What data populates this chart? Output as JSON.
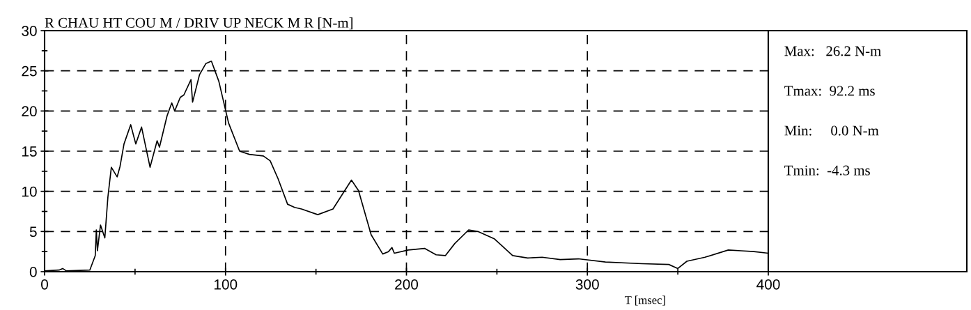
{
  "chart_data": {
    "type": "line",
    "title": "R CHAU HT COU M / DRIV UP NECK M R [N-m]",
    "xlabel": "T [msec]",
    "x": [
      0,
      8,
      10,
      12,
      25,
      28,
      28.6,
      29.2,
      30.9,
      33.3,
      35,
      36.9,
      40.1,
      41.7,
      43.9,
      47.6,
      50.4,
      53.6,
      58.3,
      62.2,
      63.5,
      67.7,
      70.3,
      71.9,
      75,
      77,
      80.9,
      81.8,
      85.6,
      89.1,
      92.2,
      96.3,
      101.7,
      107.8,
      113.2,
      120.9,
      124.7,
      129,
      134.3,
      138.2,
      142,
      151,
      159.4,
      169.6,
      173.5,
      180.5,
      186.9,
      190.1,
      192,
      193.3,
      201,
      210,
      216.4,
      221.5,
      226.7,
      234.4,
      239.5,
      248.5,
      258.7,
      267,
      275,
      285,
      295,
      310,
      330,
      345,
      350,
      355,
      365,
      377.9,
      385,
      392,
      400
    ],
    "series": [
      {
        "color": "#000000",
        "values": [
          0.1,
          0.2,
          0.4,
          0.1,
          0.2,
          2.0,
          5.2,
          2.6,
          5.8,
          4.2,
          9.3,
          13.0,
          11.8,
          13.1,
          15.9,
          18.3,
          15.9,
          18.0,
          13.0,
          16.3,
          15.5,
          19.4,
          21.0,
          20.0,
          21.7,
          22.0,
          23.9,
          21.1,
          24.5,
          25.9,
          26.2,
          23.7,
          18.5,
          15.0,
          14.6,
          14.4,
          13.8,
          11.6,
          8.4,
          8.0,
          7.8,
          7.1,
          7.8,
          11.4,
          10.1,
          4.6,
          2.2,
          2.5,
          3.0,
          2.3,
          2.7,
          2.9,
          2.1,
          2.0,
          3.5,
          5.2,
          5.0,
          4.1,
          2.0,
          1.7,
          1.8,
          1.5,
          1.6,
          1.2,
          1.0,
          0.9,
          0.4,
          1.3,
          1.8,
          2.7,
          2.6,
          2.5,
          2.3
        ]
      }
    ],
    "xlim": [
      0,
      400
    ],
    "ylim": [
      0,
      30
    ],
    "xticks": [
      0,
      {
        "value": 50,
        "label": null
      },
      100,
      {
        "value": 150,
        "label": null
      },
      200,
      {
        "value": 250,
        "label": null
      },
      300,
      {
        "value": 350,
        "label": null
      },
      400
    ],
    "yticks": [
      0,
      {
        "value": 2.5,
        "label": null
      },
      5,
      {
        "value": 7.5,
        "label": null
      },
      10,
      {
        "value": 12.5,
        "label": null
      },
      15,
      {
        "value": 17.5,
        "label": null
      },
      20,
      {
        "value": 22.5,
        "label": null
      },
      25,
      {
        "value": 27.5,
        "label": null
      },
      30
    ],
    "grid": true,
    "line_style": "solid",
    "marker": "none",
    "legend": false,
    "annotations": [
      "Max:   26.2 N-m",
      "Tmax:  92.2 ms",
      "Min:     0.0 N-m",
      "Tmin:  -4.3 ms"
    ]
  }
}
